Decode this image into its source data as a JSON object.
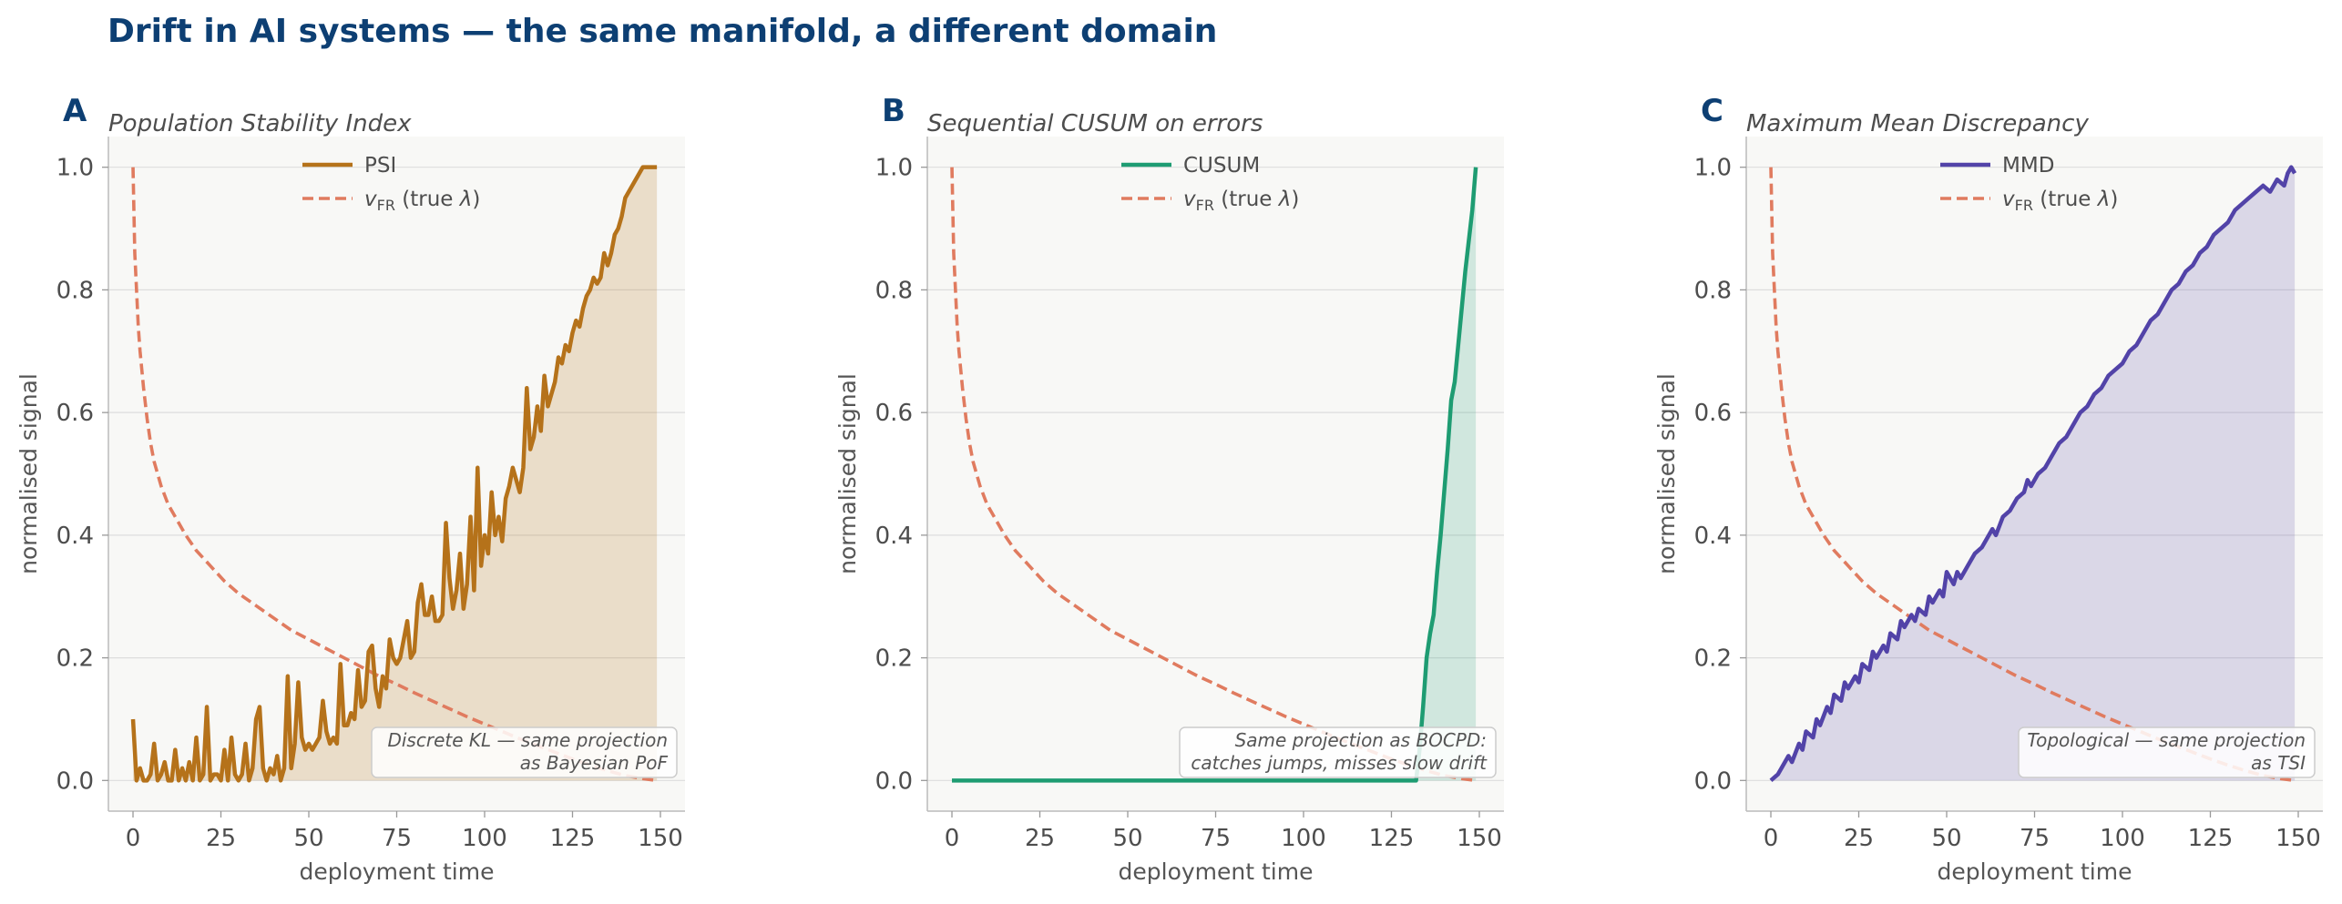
{
  "title": "Drift in AI systems — the same manifold, a different domain",
  "colors": {
    "title": "#0d3f73",
    "vfr": "#e07b5f",
    "psi": "#b5721a",
    "cusum": "#1e9c72",
    "mmd": "#5243a8",
    "plot_bg": "#f8f8f6",
    "grid": "#dddddd"
  },
  "chart_data": [
    {
      "type": "line",
      "panel": "A",
      "title": "Population Stability Index",
      "xlabel": "deployment time",
      "ylabel": "normalised signal",
      "xlim": [
        -7,
        157
      ],
      "ylim": [
        -0.05,
        1.05
      ],
      "xticks": [
        0,
        25,
        50,
        75,
        100,
        125,
        150
      ],
      "yticks": [
        0.0,
        0.2,
        0.4,
        0.6,
        0.8,
        1.0
      ],
      "ytick_labels": [
        "0.0",
        "0.2",
        "0.4",
        "0.6",
        "0.8",
        "1.0"
      ],
      "grid": "horizontal",
      "legend_position": "top-center",
      "annotation": [
        "Discrete KL — same projection",
        "as Bayesian PoF"
      ],
      "series": [
        {
          "name": "PSI",
          "style": "solid",
          "fill": true,
          "x": [
            0,
            1,
            2,
            3,
            4,
            5,
            6,
            7,
            8,
            9,
            10,
            11,
            12,
            13,
            14,
            15,
            16,
            17,
            18,
            19,
            20,
            21,
            22,
            23,
            24,
            25,
            26,
            27,
            28,
            29,
            30,
            31,
            32,
            33,
            34,
            35,
            36,
            37,
            38,
            39,
            40,
            41,
            42,
            43,
            44,
            45,
            46,
            47,
            48,
            49,
            50,
            51,
            52,
            53,
            54,
            55,
            56,
            57,
            58,
            59,
            60,
            61,
            62,
            63,
            64,
            65,
            66,
            67,
            68,
            69,
            70,
            71,
            72,
            73,
            74,
            75,
            76,
            77,
            78,
            79,
            80,
            81,
            82,
            83,
            84,
            85,
            86,
            87,
            88,
            89,
            90,
            91,
            92,
            93,
            94,
            95,
            96,
            97,
            98,
            99,
            100,
            101,
            102,
            103,
            104,
            105,
            106,
            107,
            108,
            109,
            110,
            111,
            112,
            113,
            114,
            115,
            116,
            117,
            118,
            119,
            120,
            121,
            122,
            123,
            124,
            125,
            126,
            127,
            128,
            129,
            130,
            131,
            132,
            133,
            134,
            135,
            136,
            137,
            138,
            139,
            140,
            141,
            142,
            143,
            144,
            145,
            146,
            147,
            148,
            149
          ],
          "values": [
            0.1,
            0.0,
            0.02,
            0.0,
            0.0,
            0.01,
            0.06,
            0.0,
            0.01,
            0.03,
            0.0,
            0.0,
            0.05,
            0.0,
            0.02,
            0.0,
            0.03,
            0.0,
            0.07,
            0.0,
            0.01,
            0.12,
            0.0,
            0.01,
            0.01,
            0.0,
            0.05,
            0.0,
            0.07,
            0.01,
            0.0,
            0.01,
            0.06,
            0.0,
            0.02,
            0.1,
            0.12,
            0.02,
            0.0,
            0.02,
            0.01,
            0.04,
            0.0,
            0.02,
            0.17,
            0.02,
            0.06,
            0.16,
            0.07,
            0.05,
            0.06,
            0.05,
            0.06,
            0.07,
            0.13,
            0.08,
            0.06,
            0.07,
            0.06,
            0.19,
            0.09,
            0.09,
            0.11,
            0.1,
            0.18,
            0.12,
            0.13,
            0.21,
            0.22,
            0.15,
            0.12,
            0.17,
            0.15,
            0.23,
            0.2,
            0.19,
            0.2,
            0.23,
            0.26,
            0.2,
            0.21,
            0.29,
            0.32,
            0.27,
            0.27,
            0.3,
            0.26,
            0.26,
            0.27,
            0.42,
            0.33,
            0.28,
            0.31,
            0.37,
            0.28,
            0.32,
            0.43,
            0.31,
            0.51,
            0.35,
            0.4,
            0.37,
            0.47,
            0.4,
            0.43,
            0.39,
            0.46,
            0.48,
            0.51,
            0.49,
            0.47,
            0.51,
            0.64,
            0.54,
            0.56,
            0.61,
            0.57,
            0.66,
            0.61,
            0.63,
            0.65,
            0.69,
            0.68,
            0.71,
            0.7,
            0.73,
            0.75,
            0.74,
            0.77,
            0.79,
            0.8,
            0.82,
            0.81,
            0.82,
            0.86,
            0.84,
            0.86,
            0.89,
            0.9,
            0.92,
            0.95,
            0.96,
            0.97,
            0.98,
            0.99,
            1.0,
            1.0,
            1.0,
            1.0,
            1.0
          ]
        },
        {
          "name": "v_FR  (true λ)",
          "style": "dashed",
          "fill": false,
          "x": [
            0,
            0.5,
            1,
            1.5,
            2,
            3,
            4,
            5,
            6,
            8,
            10,
            12,
            15,
            18,
            22,
            26,
            30,
            35,
            40,
            45,
            50,
            55,
            60,
            65,
            70,
            75,
            80,
            85,
            90,
            95,
            100,
            105,
            110,
            115,
            120,
            125,
            130,
            135,
            140,
            145,
            149
          ],
          "values": [
            1.0,
            0.86,
            0.8,
            0.74,
            0.7,
            0.64,
            0.59,
            0.55,
            0.52,
            0.48,
            0.45,
            0.43,
            0.4,
            0.375,
            0.35,
            0.325,
            0.305,
            0.285,
            0.265,
            0.245,
            0.23,
            0.215,
            0.2,
            0.185,
            0.17,
            0.157,
            0.143,
            0.13,
            0.117,
            0.104,
            0.092,
            0.08,
            0.068,
            0.057,
            0.046,
            0.035,
            0.025,
            0.016,
            0.008,
            0.003,
            0.0
          ]
        }
      ]
    },
    {
      "type": "line",
      "panel": "B",
      "title": "Sequential CUSUM on errors",
      "xlabel": "deployment time",
      "ylabel": "normalised signal",
      "xlim": [
        -7,
        157
      ],
      "ylim": [
        -0.05,
        1.05
      ],
      "xticks": [
        0,
        25,
        50,
        75,
        100,
        125,
        150
      ],
      "yticks": [
        0.0,
        0.2,
        0.4,
        0.6,
        0.8,
        1.0
      ],
      "ytick_labels": [
        "0.0",
        "0.2",
        "0.4",
        "0.6",
        "0.8",
        "1.0"
      ],
      "grid": "horizontal",
      "legend_position": "top-center",
      "annotation": [
        "Same projection as BOCPD:",
        "catches jumps, misses slow drift"
      ],
      "series": [
        {
          "name": "CUSUM",
          "style": "solid",
          "fill": true,
          "x": [
            0,
            131,
            132,
            133,
            134,
            135,
            136,
            137,
            138,
            139,
            140,
            141,
            142,
            143,
            144,
            145,
            146,
            147,
            148,
            149
          ],
          "values": [
            0.0,
            0.0,
            0.0,
            0.05,
            0.12,
            0.2,
            0.24,
            0.27,
            0.34,
            0.4,
            0.47,
            0.54,
            0.62,
            0.65,
            0.71,
            0.77,
            0.83,
            0.88,
            0.93,
            1.0
          ]
        },
        {
          "name": "v_FR  (true λ)",
          "style": "dashed",
          "fill": false,
          "x": [
            0,
            0.5,
            1,
            1.5,
            2,
            3,
            4,
            5,
            6,
            8,
            10,
            12,
            15,
            18,
            22,
            26,
            30,
            35,
            40,
            45,
            50,
            55,
            60,
            65,
            70,
            75,
            80,
            85,
            90,
            95,
            100,
            105,
            110,
            115,
            120,
            125,
            130,
            135,
            140,
            145,
            149
          ],
          "values": [
            1.0,
            0.86,
            0.8,
            0.74,
            0.7,
            0.64,
            0.59,
            0.55,
            0.52,
            0.48,
            0.45,
            0.43,
            0.4,
            0.375,
            0.35,
            0.325,
            0.305,
            0.285,
            0.265,
            0.245,
            0.23,
            0.215,
            0.2,
            0.185,
            0.17,
            0.157,
            0.143,
            0.13,
            0.117,
            0.104,
            0.092,
            0.08,
            0.068,
            0.057,
            0.046,
            0.035,
            0.025,
            0.016,
            0.008,
            0.003,
            0.0
          ]
        }
      ]
    },
    {
      "type": "line",
      "panel": "C",
      "title": "Maximum Mean Discrepancy",
      "xlabel": "deployment time",
      "ylabel": "normalised signal",
      "xlim": [
        -7,
        157
      ],
      "ylim": [
        -0.05,
        1.05
      ],
      "xticks": [
        0,
        25,
        50,
        75,
        100,
        125,
        150
      ],
      "yticks": [
        0.0,
        0.2,
        0.4,
        0.6,
        0.8,
        1.0
      ],
      "ytick_labels": [
        "0.0",
        "0.2",
        "0.4",
        "0.6",
        "0.8",
        "1.0"
      ],
      "grid": "horizontal",
      "legend_position": "top-center",
      "annotation": [
        "Topological — same projection",
        "as TSI"
      ],
      "series": [
        {
          "name": "MMD",
          "style": "solid",
          "fill": true,
          "x": [
            0,
            2,
            4,
            5,
            6,
            8,
            9,
            10,
            12,
            13,
            14,
            16,
            17,
            18,
            20,
            21,
            22,
            24,
            25,
            26,
            28,
            29,
            30,
            32,
            33,
            34,
            36,
            37,
            38,
            40,
            41,
            42,
            44,
            45,
            46,
            48,
            49,
            50,
            52,
            53,
            54,
            56,
            58,
            60,
            62,
            63,
            64,
            66,
            68,
            70,
            72,
            73,
            74,
            76,
            78,
            80,
            82,
            84,
            86,
            88,
            90,
            92,
            94,
            96,
            98,
            100,
            102,
            104,
            106,
            108,
            110,
            112,
            114,
            116,
            118,
            120,
            122,
            124,
            126,
            128,
            130,
            132,
            134,
            136,
            138,
            140,
            142,
            144,
            146,
            147,
            148,
            149
          ],
          "values": [
            0.0,
            0.01,
            0.03,
            0.04,
            0.03,
            0.06,
            0.05,
            0.08,
            0.07,
            0.1,
            0.09,
            0.12,
            0.11,
            0.14,
            0.13,
            0.16,
            0.15,
            0.17,
            0.16,
            0.19,
            0.18,
            0.21,
            0.2,
            0.22,
            0.21,
            0.24,
            0.23,
            0.26,
            0.25,
            0.27,
            0.26,
            0.28,
            0.27,
            0.3,
            0.29,
            0.31,
            0.3,
            0.34,
            0.32,
            0.34,
            0.33,
            0.35,
            0.37,
            0.38,
            0.4,
            0.41,
            0.4,
            0.43,
            0.44,
            0.46,
            0.47,
            0.49,
            0.48,
            0.5,
            0.51,
            0.53,
            0.55,
            0.56,
            0.58,
            0.6,
            0.61,
            0.63,
            0.64,
            0.66,
            0.67,
            0.68,
            0.7,
            0.71,
            0.73,
            0.75,
            0.76,
            0.78,
            0.8,
            0.81,
            0.83,
            0.84,
            0.86,
            0.87,
            0.89,
            0.9,
            0.91,
            0.93,
            0.94,
            0.95,
            0.96,
            0.97,
            0.96,
            0.98,
            0.97,
            0.99,
            1.0,
            0.99
          ]
        },
        {
          "name": "v_FR  (true λ)",
          "style": "dashed",
          "fill": false,
          "x": [
            0,
            0.5,
            1,
            1.5,
            2,
            3,
            4,
            5,
            6,
            8,
            10,
            12,
            15,
            18,
            22,
            26,
            30,
            35,
            40,
            45,
            50,
            55,
            60,
            65,
            70,
            75,
            80,
            85,
            90,
            95,
            100,
            105,
            110,
            115,
            120,
            125,
            130,
            135,
            140,
            145,
            149
          ],
          "values": [
            1.0,
            0.86,
            0.8,
            0.74,
            0.7,
            0.64,
            0.59,
            0.55,
            0.52,
            0.48,
            0.45,
            0.43,
            0.4,
            0.375,
            0.35,
            0.325,
            0.305,
            0.285,
            0.265,
            0.245,
            0.23,
            0.215,
            0.2,
            0.185,
            0.17,
            0.157,
            0.143,
            0.13,
            0.117,
            0.104,
            0.092,
            0.08,
            0.068,
            0.057,
            0.046,
            0.035,
            0.025,
            0.016,
            0.008,
            0.003,
            0.0
          ]
        }
      ]
    }
  ]
}
